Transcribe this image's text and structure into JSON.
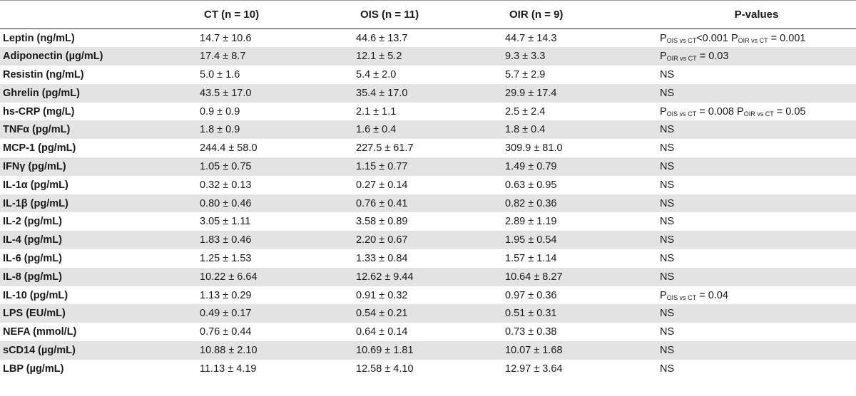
{
  "headers": [
    "",
    "CT (n = 10)",
    "OIS (n = 11)",
    "OIR (n = 9)",
    "P-values"
  ],
  "rows": [
    {
      "label": "Leptin (ng/mL)",
      "ct": "14.7 ± 10.6",
      "ois": "44.6 ± 13.7",
      "oir": "44.7 ± 14.3",
      "p": [
        {
          "t": "P"
        },
        {
          "s": "OIS vs CT"
        },
        {
          "t": "<0.001 P"
        },
        {
          "s": "OIR vs CT"
        },
        {
          "t": " = 0.001"
        }
      ]
    },
    {
      "label": "Adiponectin (µg/mL)",
      "ct": "17.4 ± 8.7",
      "ois": "12.1 ± 5.2",
      "oir": "9.3 ± 3.3",
      "p": [
        {
          "t": "P"
        },
        {
          "s": "OIR vs CT"
        },
        {
          "t": " = 0.03"
        }
      ]
    },
    {
      "label": "Resistin (ng/mL)",
      "ct": "5.0 ± 1.6",
      "ois": "5.4 ± 2.0",
      "oir": "5.7 ± 2.9",
      "p": [
        {
          "t": "NS"
        }
      ]
    },
    {
      "label": "Ghrelin (pg/mL)",
      "ct": "43.5 ± 17.0",
      "ois": "35.4 ± 17.0",
      "oir": "29.9 ± 17.4",
      "p": [
        {
          "t": "NS"
        }
      ]
    },
    {
      "label": "hs-CRP (mg/L)",
      "ct": "0.9 ± 0.9",
      "ois": "2.1 ± 1.1",
      "oir": "2.5 ± 2.4",
      "p": [
        {
          "t": "P"
        },
        {
          "s": "OIS vs CT"
        },
        {
          "t": " = 0.008 P"
        },
        {
          "s": "OIR vs CT"
        },
        {
          "t": " = 0.05"
        }
      ]
    },
    {
      "label": "TNFα (pg/mL)",
      "ct": "1.8 ± 0.9",
      "ois": "1.6 ± 0.4",
      "oir": "1.8 ± 0.4",
      "p": [
        {
          "t": "NS"
        }
      ]
    },
    {
      "label": "MCP-1 (pg/mL)",
      "ct": "244.4 ± 58.0",
      "ois": "227.5 ± 61.7",
      "oir": "309.9 ± 81.0",
      "p": [
        {
          "t": "NS"
        }
      ]
    },
    {
      "label": "IFNγ (pg/mL)",
      "ct": "1.05 ± 0.75",
      "ois": "1.15 ± 0.77",
      "oir": "1.49 ± 0.79",
      "p": [
        {
          "t": "NS"
        }
      ]
    },
    {
      "label": "IL-1α (pg/mL)",
      "ct": "0.32 ± 0.13",
      "ois": "0.27 ± 0.14",
      "oir": "0.63 ± 0.95",
      "p": [
        {
          "t": "NS"
        }
      ]
    },
    {
      "label": "IL-1β (pg/mL)",
      "ct": "0.80 ± 0.46",
      "ois": "0.76 ± 0.41",
      "oir": "0.82 ± 0.36",
      "p": [
        {
          "t": "NS"
        }
      ]
    },
    {
      "label": "IL-2 (pg/mL)",
      "ct": "3.05 ± 1.11",
      "ois": "3.58 ± 0.89",
      "oir": "2.89 ± 1.19",
      "p": [
        {
          "t": "NS"
        }
      ]
    },
    {
      "label": "IL-4 (pg/mL)",
      "ct": "1.83 ± 0.46",
      "ois": "2.20 ± 0.67",
      "oir": "1.95 ± 0.54",
      "p": [
        {
          "t": "NS"
        }
      ]
    },
    {
      "label": "IL-6 (pg/mL)",
      "ct": "1.25 ± 1.53",
      "ois": "1.33 ± 0.84",
      "oir": "1.57 ± 1.14",
      "p": [
        {
          "t": "NS"
        }
      ]
    },
    {
      "label": "IL-8 (pg/mL)",
      "ct": "10.22 ± 6.64",
      "ois": "12.62 ± 9.44",
      "oir": "10.64 ± 8.27",
      "p": [
        {
          "t": "NS"
        }
      ]
    },
    {
      "label": "IL-10 (pg/mL)",
      "ct": "1.13 ± 0.29",
      "ois": "0.91 ± 0.32",
      "oir": "0.97 ± 0.36",
      "p": [
        {
          "t": "P"
        },
        {
          "s": "OIS vs CT"
        },
        {
          "t": " = 0.04"
        }
      ]
    },
    {
      "label": "LPS (EU/mL)",
      "ct": "0.49 ± 0.17",
      "ois": "0.54 ± 0.21",
      "oir": "0.51 ± 0.31",
      "p": [
        {
          "t": "NS"
        }
      ]
    },
    {
      "label": "NEFA (mmol/L)",
      "ct": "0.76 ± 0.44",
      "ois": "0.64 ± 0.14",
      "oir": "0.73 ± 0.38",
      "p": [
        {
          "t": "NS"
        }
      ]
    },
    {
      "label": "sCD14 (µg/mL)",
      "ct": "10.88 ± 2.10",
      "ois": "10.69 ± 1.81",
      "oir": "10.07 ± 1.68",
      "p": [
        {
          "t": "NS"
        }
      ]
    },
    {
      "label": "LBP (µg/mL)",
      "ct": "11.13 ± 4.19",
      "ois": "12.58 ± 4.10",
      "oir": "12.97 ± 3.64",
      "p": [
        {
          "t": "NS"
        }
      ]
    }
  ]
}
